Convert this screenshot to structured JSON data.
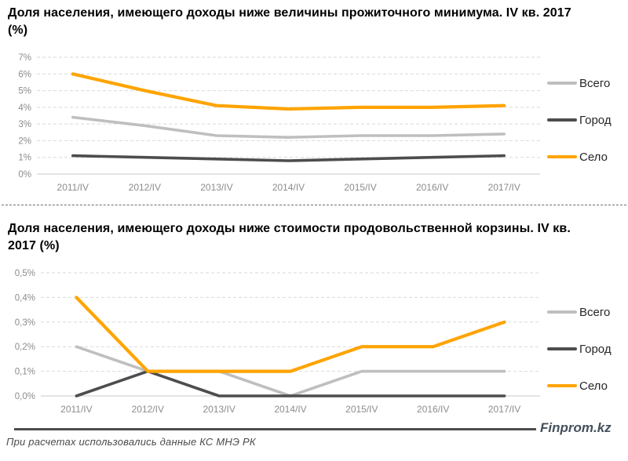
{
  "page": {
    "brand": "Finprom.kz",
    "source_note": "При расчетах использовались данные КС МНЭ РК"
  },
  "colors": {
    "total": "#bfbfbf",
    "city": "#4d4d4d",
    "village": "#ffa400",
    "grid": "#d9d9d9",
    "baseline": "#c9c9c9",
    "tick_label": "#8c8c8c",
    "brand": "#44505c"
  },
  "chart_data": [
    {
      "type": "line",
      "title": "Доля населения, имеющего доходы ниже величины прожиточного минимума. IV кв. 2017 (%)",
      "categories": [
        "2011/IV",
        "2012/IV",
        "2013/IV",
        "2014/IV",
        "2015/IV",
        "2016/IV",
        "2017/IV"
      ],
      "series": [
        {
          "name": "Всего",
          "color_key": "total",
          "values": [
            3.4,
            2.9,
            2.3,
            2.2,
            2.3,
            2.3,
            2.4
          ]
        },
        {
          "name": "Город",
          "color_key": "city",
          "values": [
            1.1,
            1.0,
            0.9,
            0.8,
            0.9,
            1.0,
            1.1
          ]
        },
        {
          "name": "Село",
          "color_key": "village",
          "values": [
            6.0,
            5.0,
            4.1,
            3.9,
            4.0,
            4.0,
            4.1
          ]
        }
      ],
      "ylim": [
        0,
        7
      ],
      "ytick_labels": [
        "0%",
        "1%",
        "2%",
        "3%",
        "4%",
        "5%",
        "6%",
        "7%"
      ],
      "xlabel": "",
      "ylabel": "",
      "grid": true,
      "legend_position": "right"
    },
    {
      "type": "line",
      "title": "Доля населения, имеющего доходы ниже стоимости продовольственной корзины. IV кв. 2017 (%)",
      "categories": [
        "2011/IV",
        "2012/IV",
        "2013/IV",
        "2014/IV",
        "2015/IV",
        "2016/IV",
        "2017/IV"
      ],
      "series": [
        {
          "name": "Всего",
          "color_key": "total",
          "values": [
            0.2,
            0.1,
            0.1,
            0.0,
            0.1,
            0.1,
            0.1
          ]
        },
        {
          "name": "Город",
          "color_key": "city",
          "values": [
            0.0,
            0.1,
            0.0,
            0.0,
            0.0,
            0.0,
            0.0
          ]
        },
        {
          "name": "Село",
          "color_key": "village",
          "values": [
            0.4,
            0.1,
            0.1,
            0.1,
            0.2,
            0.2,
            0.3
          ]
        }
      ],
      "ylim": [
        0,
        0.5
      ],
      "ytick_labels": [
        "0,0%",
        "0,1%",
        "0,2%",
        "0,3%",
        "0,4%",
        "0,5%"
      ],
      "xlabel": "",
      "ylabel": "",
      "grid": true,
      "legend_position": "right"
    }
  ]
}
